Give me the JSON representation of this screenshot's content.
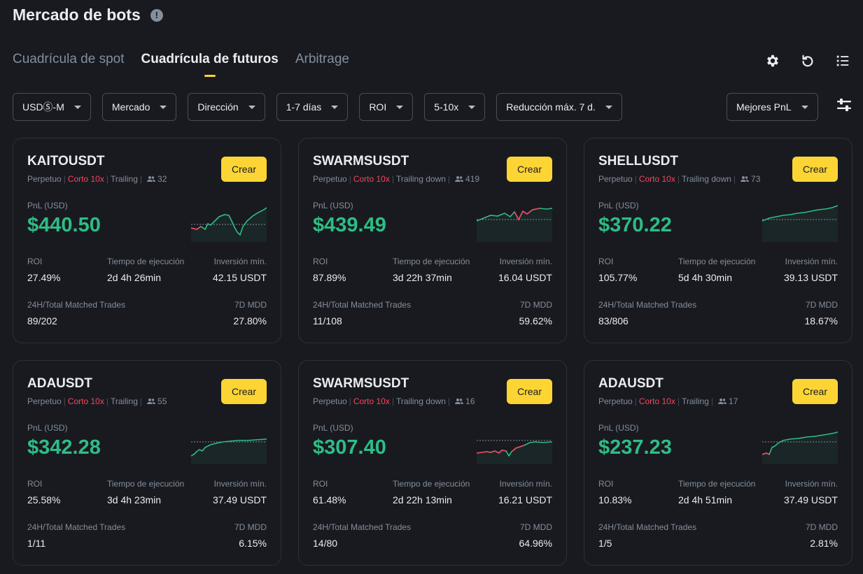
{
  "header": {
    "title": "Mercado de bots",
    "info_icon": "!"
  },
  "tabs": [
    {
      "label": "Cuadrícula de spot",
      "active": false
    },
    {
      "label": "Cuadrícula de futuros",
      "active": true
    },
    {
      "label": "Arbitrage",
      "active": false
    }
  ],
  "toolbar_icons": [
    "gear-icon",
    "refresh-icon",
    "list-icon"
  ],
  "filters": {
    "margin": "USDⓈ-M",
    "market": "Mercado",
    "direction": "Dirección",
    "duration": "1-7 días",
    "roi": "ROI",
    "leverage": "5-10x",
    "drawdown": "Reducción máx. 7 d.",
    "sort": "Mejores PnL"
  },
  "labels": {
    "pnl": "PnL (USD)",
    "roi": "ROI",
    "runtime": "Tiempo de ejecución",
    "min_invest": "Inversión mín.",
    "trades": "24H/Total Matched Trades",
    "mdd": "7D MDD",
    "create": "Crear"
  },
  "colors": {
    "accent": "#fcd535",
    "positive": "#2ebd85",
    "negative": "#f6465d",
    "background": "#181a20"
  },
  "cards": [
    {
      "symbol": "KAITOUSDT",
      "type": "Perpetuo",
      "side": "Corto 10x",
      "mode": "Trailing",
      "users": "32",
      "pnl": "$440.50",
      "roi": "27.49%",
      "runtime": "2d 4h 26min",
      "min_invest": "42.15 USDT",
      "trades": "89/202",
      "mdd": "27.80%"
    },
    {
      "symbol": "SWARMSUSDT",
      "type": "Perpetuo",
      "side": "Corto 10x",
      "mode": "Trailing down",
      "users": "419",
      "pnl": "$439.49",
      "roi": "87.89%",
      "runtime": "3d 22h 37min",
      "min_invest": "16.04 USDT",
      "trades": "11/108",
      "mdd": "59.62%"
    },
    {
      "symbol": "SHELLUSDT",
      "type": "Perpetuo",
      "side": "Corto 10x",
      "mode": "Trailing down",
      "users": "73",
      "pnl": "$370.22",
      "roi": "105.77%",
      "runtime": "5d 4h 30min",
      "min_invest": "39.13 USDT",
      "trades": "83/806",
      "mdd": "18.67%"
    },
    {
      "symbol": "ADAUSDT",
      "type": "Perpetuo",
      "side": "Corto 10x",
      "mode": "Trailing",
      "users": "55",
      "pnl": "$342.28",
      "roi": "25.58%",
      "runtime": "3d 4h 23min",
      "min_invest": "37.49 USDT",
      "trades": "1/11",
      "mdd": "6.15%"
    },
    {
      "symbol": "SWARMSUSDT",
      "type": "Perpetuo",
      "side": "Corto 10x",
      "mode": "Trailing down",
      "users": "16",
      "pnl": "$307.40",
      "roi": "61.48%",
      "runtime": "2d 22h 13min",
      "min_invest": "16.21 USDT",
      "trades": "14/80",
      "mdd": "64.96%"
    },
    {
      "symbol": "ADAUSDT",
      "type": "Perpetuo",
      "side": "Corto 10x",
      "mode": "Trailing",
      "users": "17",
      "pnl": "$237.23",
      "roi": "10.83%",
      "runtime": "2d 4h 51min",
      "min_invest": "37.49 USDT",
      "trades": "1/5",
      "mdd": "2.81%"
    }
  ]
}
